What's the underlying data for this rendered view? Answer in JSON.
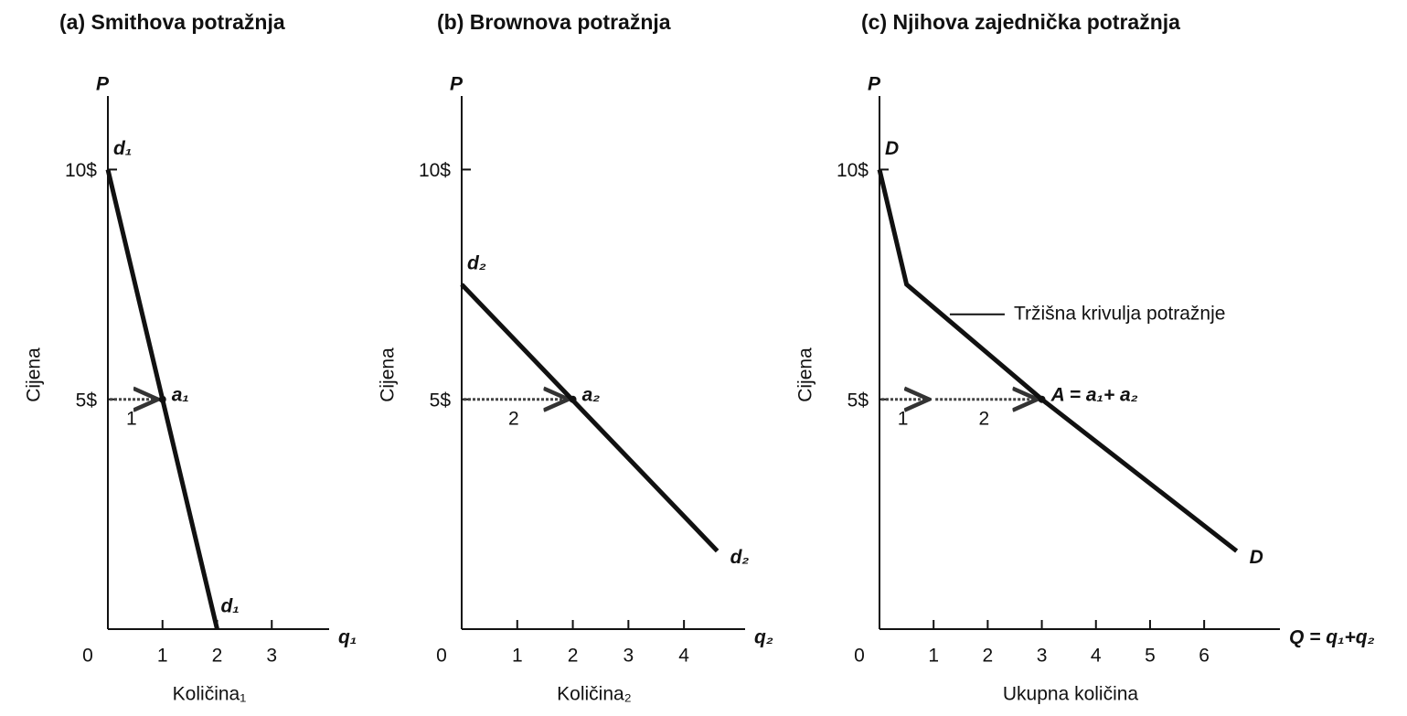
{
  "chart_data": [
    {
      "type": "line",
      "title": "(a) Smithova potražnja",
      "xlabel": "Količina₁",
      "ylabel": "Cijena",
      "y_axis_label": "P",
      "x_axis_label": "q₁",
      "xlim": [
        0,
        4.05
      ],
      "ylim": [
        0,
        11.6
      ],
      "xticks": [
        0,
        1,
        2,
        3
      ],
      "yticks": [
        {
          "value": 5,
          "label": "5$"
        },
        {
          "value": 10,
          "label": "10$"
        }
      ],
      "series": [
        {
          "name": "d₁",
          "color": "#111111",
          "x": [
            0,
            2
          ],
          "values": [
            10,
            0
          ]
        }
      ],
      "points": [
        {
          "label": "a₁",
          "x": 1,
          "y": 5
        }
      ],
      "arrows": [
        {
          "label": "1",
          "from": 0,
          "to": 1,
          "y": 5
        }
      ]
    },
    {
      "type": "line",
      "title": "(b) Brownova potražnja",
      "xlabel": "Količina₂",
      "ylabel": "Cijena",
      "y_axis_label": "P",
      "x_axis_label": "q₂",
      "xlim": [
        0,
        5.1
      ],
      "ylim": [
        0,
        11.6
      ],
      "xticks": [
        0,
        1,
        2,
        3,
        4
      ],
      "yticks": [
        {
          "value": 5,
          "label": "5$"
        },
        {
          "value": 10,
          "label": "10$"
        }
      ],
      "series": [
        {
          "name": "d₂",
          "color": "#111111",
          "x": [
            0,
            4.6
          ],
          "values": [
            7.5,
            1.7
          ]
        }
      ],
      "points": [
        {
          "label": "a₂",
          "x": 2,
          "y": 5
        }
      ],
      "arrows": [
        {
          "label": "2",
          "from": 0,
          "to": 2,
          "y": 5
        }
      ]
    },
    {
      "type": "line",
      "title": "(c) Njihova zajednička potražnja",
      "xlabel": "Ukupna količina",
      "ylabel": "Cijena",
      "y_axis_label": "P",
      "x_axis_label": "Q = q₁+q₂",
      "xlim": [
        0,
        7.4
      ],
      "ylim": [
        0,
        11.6
      ],
      "xticks": [
        0,
        1,
        2,
        3,
        4,
        5,
        6
      ],
      "yticks": [
        {
          "value": 5,
          "label": "5$"
        },
        {
          "value": 10,
          "label": "10$"
        }
      ],
      "series": [
        {
          "name": "D",
          "color": "#111111",
          "x": [
            0,
            0.5,
            3,
            6.6
          ],
          "values": [
            10,
            7.5,
            5,
            1.7
          ]
        }
      ],
      "points": [
        {
          "label": "A = a₁+ a₂",
          "x": 3,
          "y": 5
        }
      ],
      "arrows": [
        {
          "label": "1",
          "from": 0,
          "to": 1,
          "y": 5
        },
        {
          "label": "2",
          "from": 1,
          "to": 3,
          "y": 5
        }
      ],
      "annotations": [
        {
          "text": "Tržišna krivulja potražnje",
          "x": 1.3,
          "y": 6.85
        }
      ]
    }
  ]
}
